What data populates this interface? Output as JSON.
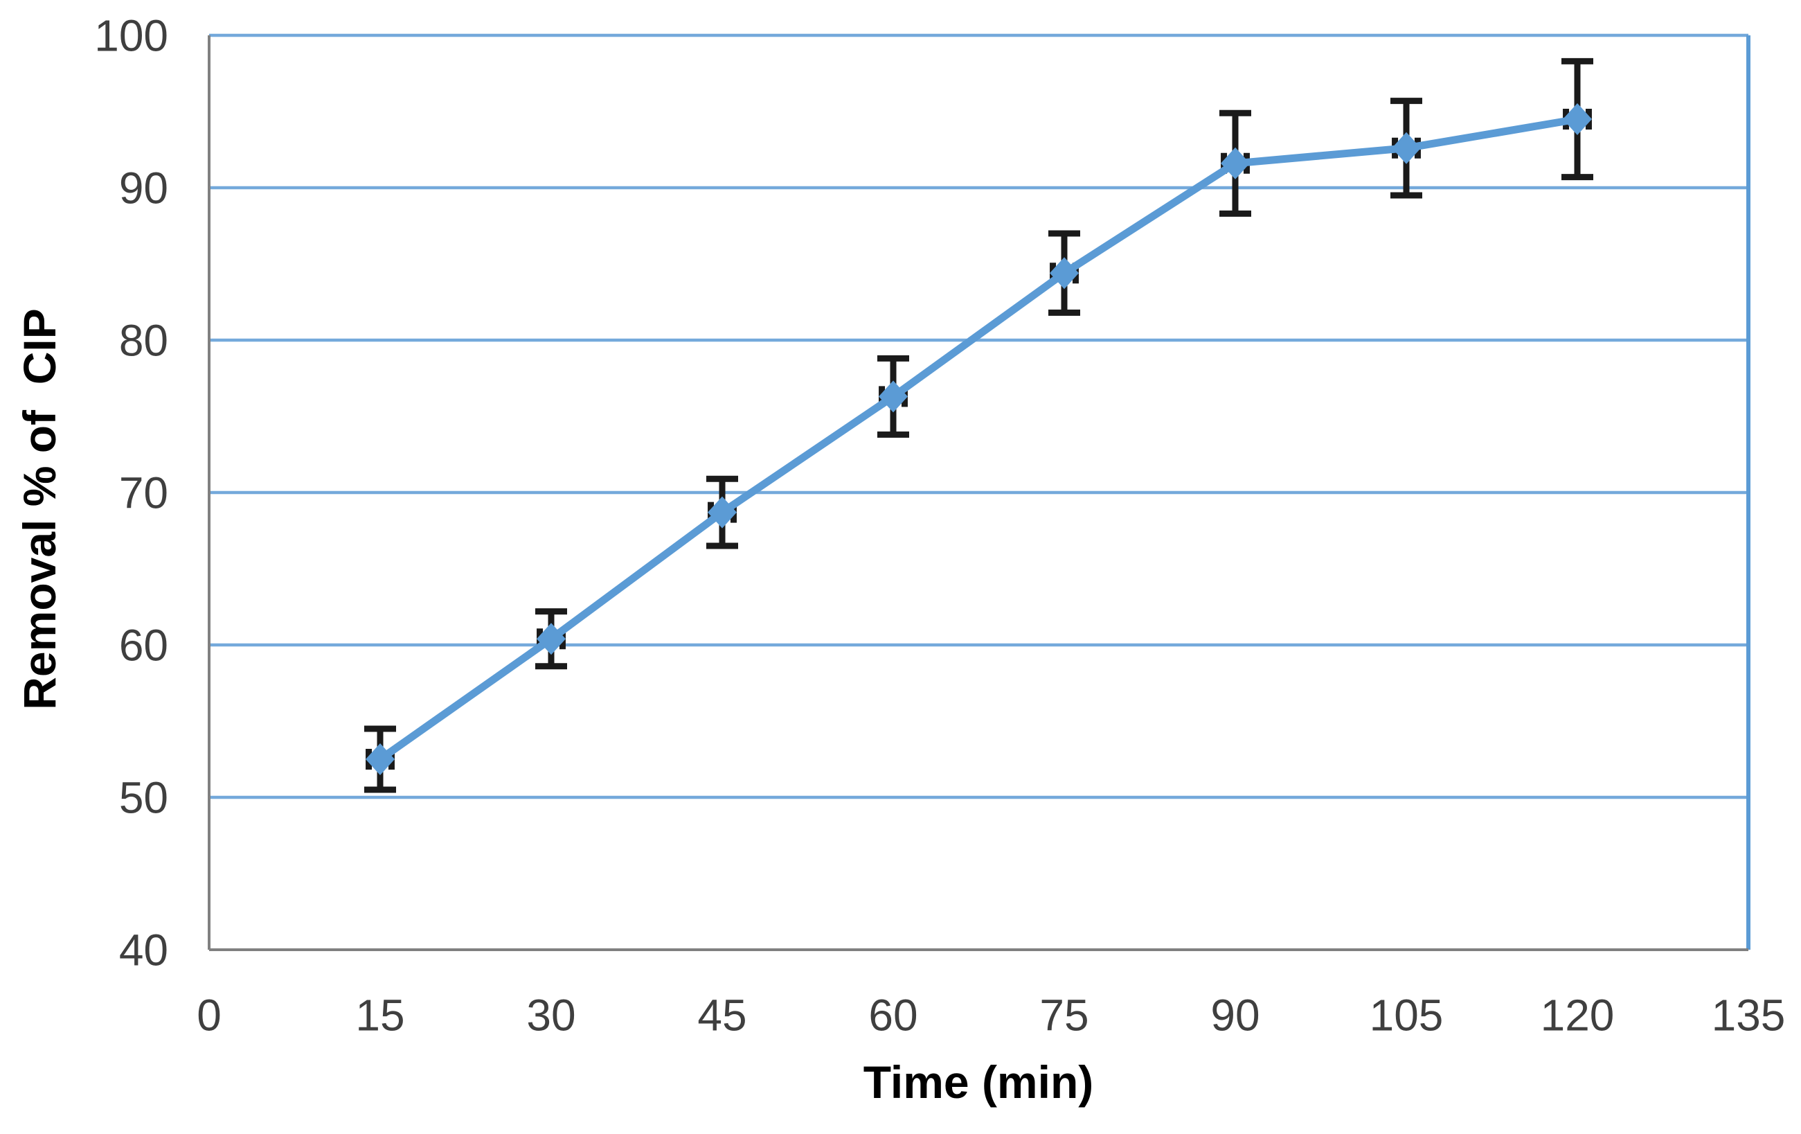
{
  "chart_data": {
    "type": "line",
    "title": "",
    "xlabel": "Time (min)",
    "ylabel": "Removal % of  CIP",
    "series": [
      {
        "name": "Removal % of CIP",
        "x": [
          15,
          30,
          45,
          60,
          75,
          90,
          105,
          120
        ],
        "y": [
          52.5,
          60.4,
          68.7,
          76.3,
          84.4,
          91.6,
          92.6,
          94.5
        ],
        "y_err": [
          2.0,
          1.8,
          2.2,
          2.5,
          2.6,
          3.3,
          3.1,
          3.8
        ],
        "x_err": [
          1,
          1,
          1,
          1,
          1,
          1,
          1,
          1
        ]
      }
    ],
    "xlim": [
      0,
      135
    ],
    "ylim": [
      40,
      100
    ],
    "xticks": [
      0,
      15,
      30,
      45,
      60,
      75,
      90,
      105,
      120,
      135
    ],
    "yticks": [
      40,
      50,
      60,
      70,
      80,
      90,
      100
    ],
    "grid": "horizontal-major",
    "legend": "none",
    "marker": "diamond",
    "colors": {
      "series": "#5B9BD5",
      "gridline": "#74A9DB",
      "plot_border_right": "#5B9BD5",
      "axis_line": "#808080",
      "tick_text": "#3f3f3f",
      "axis_title_text": "#000000",
      "error_bar": "#1a1a1a"
    }
  }
}
